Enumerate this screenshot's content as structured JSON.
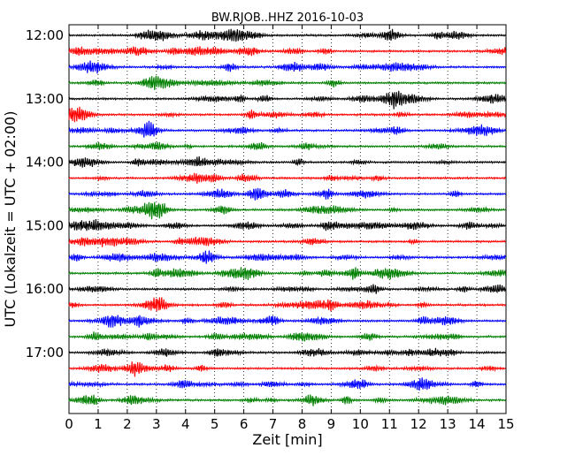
{
  "chart_data": {
    "type": "line",
    "title": "BW.RJOB..HHZ 2016-10-03",
    "xlabel": "Zeit  [min]",
    "ylabel": "UTC (Lokalzeit = UTC + 02:00)",
    "xlim": [
      0,
      15
    ],
    "x_ticks": [
      0,
      1,
      2,
      3,
      4,
      5,
      6,
      7,
      8,
      9,
      10,
      11,
      12,
      13,
      14,
      15
    ],
    "x_tick_labels": [
      "0",
      "1",
      "2",
      "3",
      "4",
      "5",
      "6",
      "7",
      "8",
      "9",
      "10",
      "11",
      "12",
      "13",
      "14",
      "15"
    ],
    "y_tick_labels": [
      "12:00",
      "13:00",
      "14:00",
      "15:00",
      "16:00",
      "17:00"
    ],
    "x_grid": "dotted vertical gridlines at each minute",
    "trace_interval_min": 15,
    "trace_start": "12:00",
    "trace_count": 24,
    "trace_colors": [
      "#000000",
      "#ff0000",
      "#0000ff",
      "#008000"
    ]
  }
}
